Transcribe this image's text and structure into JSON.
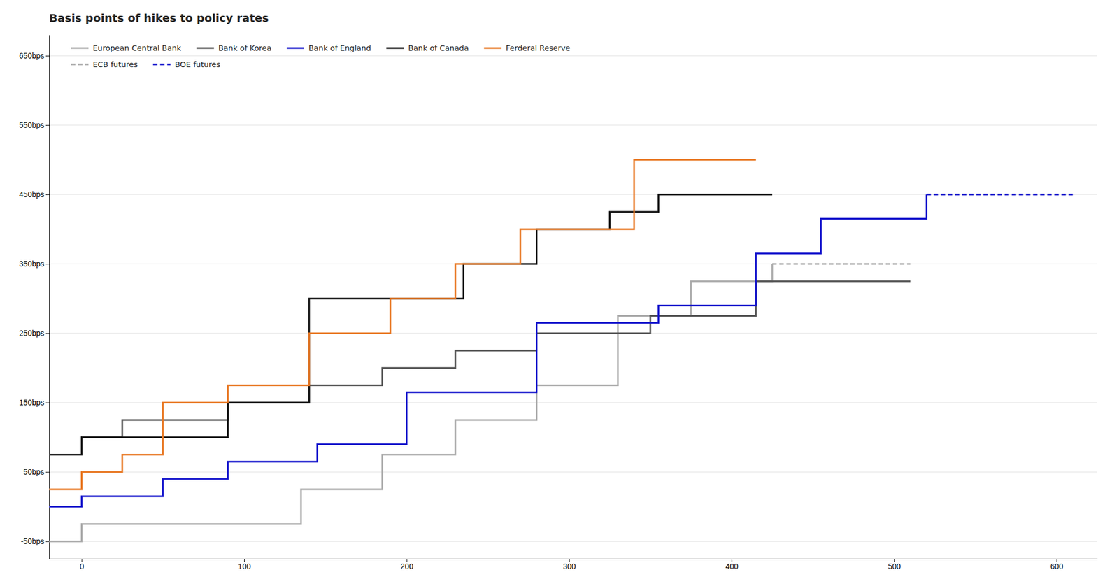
{
  "chart_data": {
    "type": "line",
    "title": "Basis points of hikes to policy rates",
    "xlim": [
      -20,
      625
    ],
    "ylim": [
      -75,
      680
    ],
    "xticks": [
      0,
      100,
      200,
      300,
      400,
      500,
      600
    ],
    "yticks": [
      {
        "value": -50,
        "label": "-50bps"
      },
      {
        "value": 50,
        "label": "50bps"
      },
      {
        "value": 150,
        "label": "150bps"
      },
      {
        "value": 250,
        "label": "250bps"
      },
      {
        "value": 350,
        "label": "350bps"
      },
      {
        "value": 450,
        "label": "450bps"
      },
      {
        "value": 550,
        "label": "550bps"
      },
      {
        "value": 650,
        "label": "650bps"
      }
    ],
    "grid": true,
    "legend": "upper left",
    "series": [
      {
        "name": "European Central Bank",
        "color": "#aaaaaa",
        "line_style": "solid",
        "x": [
          -20,
          0,
          0,
          135,
          135,
          185,
          185,
          230,
          230,
          280,
          280,
          330,
          330,
          375,
          375,
          425,
          425
        ],
        "values": [
          -50,
          -50,
          -25,
          -25,
          25,
          25,
          75,
          75,
          125,
          125,
          175,
          175,
          275,
          275,
          325,
          325,
          350
        ]
      },
      {
        "name": "ECB futures",
        "color": "#aaaaaa",
        "line_style": "dashed",
        "x": [
          425,
          510
        ],
        "values": [
          350,
          350
        ]
      },
      {
        "name": "Bank of Korea",
        "color": "#555555",
        "line_style": "solid",
        "x": [
          -20,
          0,
          0,
          25,
          25,
          90,
          90,
          140,
          140,
          185,
          185,
          230,
          230,
          280,
          280,
          350,
          350,
          415,
          415,
          455,
          455,
          510,
          510
        ],
        "values": [
          75,
          75,
          100,
          100,
          125,
          125,
          150,
          150,
          175,
          175,
          200,
          200,
          225,
          225,
          250,
          250,
          275,
          275,
          325,
          325,
          325,
          325,
          325
        ]
      },
      {
        "name": "Bank of England",
        "color": "#1414cc",
        "line_style": "solid",
        "x": [
          -20,
          0,
          0,
          25,
          25,
          50,
          50,
          90,
          90,
          145,
          145,
          200,
          200,
          280,
          280,
          355,
          355,
          415,
          415,
          455,
          455,
          520,
          520
        ],
        "values": [
          0,
          0,
          15,
          15,
          15,
          15,
          40,
          40,
          65,
          65,
          90,
          90,
          165,
          165,
          265,
          265,
          290,
          290,
          365,
          365,
          415,
          415,
          450
        ]
      },
      {
        "name": "BOE futures",
        "color": "#1414cc",
        "line_style": "dashed",
        "x": [
          520,
          610
        ],
        "values": [
          450,
          450
        ]
      },
      {
        "name": "Bank of Canada",
        "color": "#111111",
        "line_style": "solid",
        "x": [
          -20,
          0,
          0,
          90,
          90,
          140,
          140,
          235,
          235,
          280,
          280,
          325,
          325,
          355,
          355,
          425,
          425
        ],
        "values": [
          75,
          75,
          100,
          100,
          150,
          150,
          300,
          300,
          350,
          350,
          400,
          400,
          425,
          425,
          450,
          450,
          450
        ]
      },
      {
        "name": "Ferderal Reserve",
        "color": "#E87722",
        "line_style": "solid",
        "x": [
          -20,
          0,
          0,
          25,
          25,
          50,
          50,
          90,
          90,
          140,
          140,
          190,
          190,
          230,
          230,
          270,
          270,
          340,
          340,
          415,
          415
        ],
        "values": [
          25,
          25,
          50,
          50,
          75,
          75,
          150,
          150,
          175,
          175,
          250,
          250,
          300,
          300,
          350,
          350,
          400,
          400,
          500,
          500,
          500
        ]
      }
    ]
  }
}
